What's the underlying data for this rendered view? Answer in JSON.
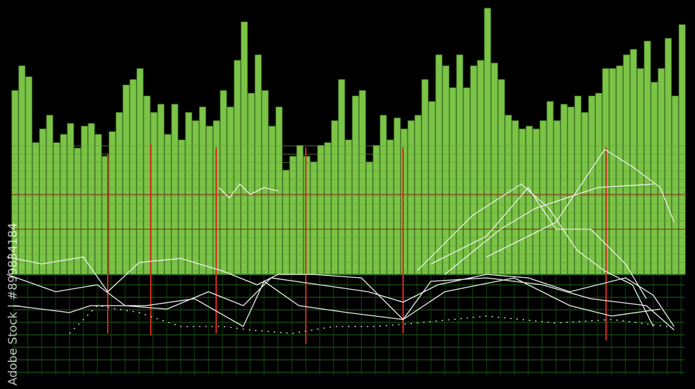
{
  "chart_data": {
    "type": "bar",
    "color": "#7cc447",
    "ylim": [
      0,
      100
    ],
    "values": [
      67,
      76,
      72,
      48,
      53,
      58,
      48,
      51,
      55,
      46,
      54,
      55,
      51,
      43,
      52,
      59,
      69,
      71,
      75,
      65,
      59,
      62,
      51,
      62,
      49,
      59,
      56,
      61,
      54,
      56,
      67,
      61,
      78,
      92,
      66,
      80,
      67,
      54,
      61,
      38,
      43,
      47,
      43,
      41,
      47,
      48,
      56,
      71,
      49,
      65,
      67,
      41,
      47,
      58,
      49,
      57,
      53,
      56,
      58,
      71,
      63,
      80,
      76,
      68,
      80,
      68,
      76,
      78,
      97,
      77,
      71,
      58,
      56,
      53,
      54,
      53,
      56,
      63,
      56,
      62,
      61,
      65,
      59,
      65,
      66,
      75,
      75,
      76,
      80,
      82,
      75,
      85,
      70,
      75,
      86,
      65,
      91
    ]
  },
  "watermark": {
    "text": "Adobe Stock | #899834184"
  }
}
